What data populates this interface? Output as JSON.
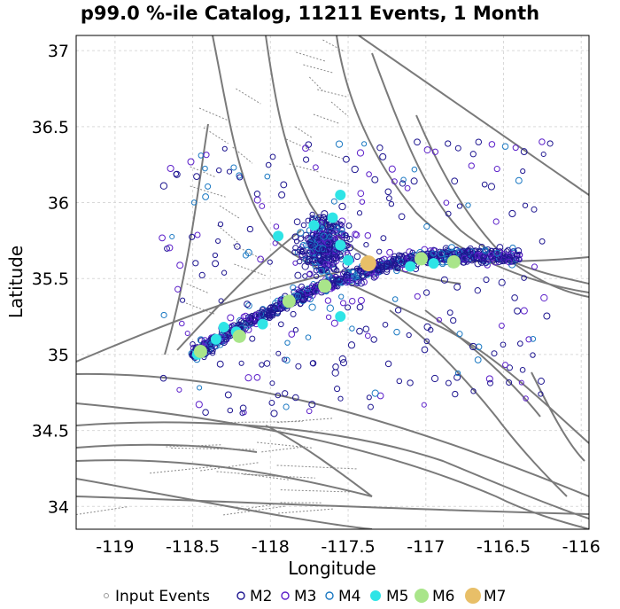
{
  "chart_data": {
    "type": "scatter",
    "title": "p99.0 %-ile Catalog, 11211 Events, 1 Month",
    "xlabel": "Longitude",
    "ylabel": "Latitude",
    "xlim": [
      -119.25,
      -115.95
    ],
    "ylim": [
      33.85,
      37.1
    ],
    "xticks": [
      -119,
      -118.5,
      -118,
      -117.5,
      -117,
      -116.5,
      -116
    ],
    "xtick_labels": [
      "-119",
      "-118.5",
      "-118",
      "-117.5",
      "-117",
      "-116.5",
      "-116"
    ],
    "yticks": [
      34,
      34.5,
      35,
      35.5,
      36,
      36.5,
      37
    ],
    "ytick_labels": [
      "34",
      "34.5",
      "35",
      "35.5",
      "36",
      "36.5",
      "37"
    ],
    "grid": true,
    "legend_position": "bottom",
    "legend": [
      {
        "label": "Input Events",
        "color": "#9a9a9a",
        "style": "small-open"
      },
      {
        "label": "M2",
        "color": "#1e1690",
        "style": "open"
      },
      {
        "label": "M3",
        "color": "#5b1fc9",
        "style": "open"
      },
      {
        "label": "M4",
        "color": "#1a78c2",
        "style": "open"
      },
      {
        "label": "M5",
        "color": "#2ee4e6",
        "style": "filled"
      },
      {
        "label": "M6",
        "color": "#a9e58a",
        "style": "filled"
      },
      {
        "label": "M7",
        "color": "#e8bf68",
        "style": "filled"
      }
    ],
    "series": [
      {
        "name": "M5",
        "color": "#2ee4e6",
        "points": [
          [
            -118.47,
            35.0
          ],
          [
            -118.35,
            35.1
          ],
          [
            -118.3,
            35.18
          ],
          [
            -118.22,
            35.15
          ],
          [
            -118.05,
            35.2
          ],
          [
            -117.95,
            35.78
          ],
          [
            -117.72,
            35.85
          ],
          [
            -117.6,
            35.9
          ],
          [
            -117.55,
            36.05
          ],
          [
            -117.55,
            35.72
          ],
          [
            -117.5,
            35.62
          ],
          [
            -117.55,
            35.25
          ],
          [
            -117.1,
            35.58
          ],
          [
            -116.95,
            35.6
          ]
        ]
      },
      {
        "name": "M6",
        "color": "#a9e58a",
        "points": [
          [
            -118.45,
            35.02
          ],
          [
            -118.2,
            35.12
          ],
          [
            -117.88,
            35.35
          ],
          [
            -117.65,
            35.45
          ],
          [
            -117.03,
            35.63
          ],
          [
            -116.82,
            35.61
          ]
        ]
      },
      {
        "name": "M7",
        "color": "#e8bf68",
        "points": [
          [
            -117.37,
            35.6
          ]
        ]
      }
    ]
  }
}
